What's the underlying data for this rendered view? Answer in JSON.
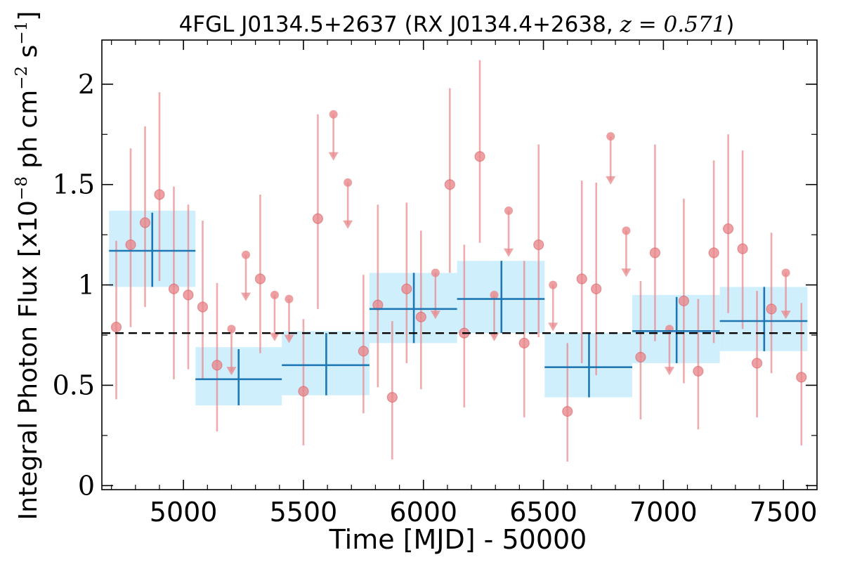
{
  "chart_data": {
    "type": "scatter",
    "title": {
      "prefix": "4FGL J0134.5+2637 (RX J0134.4+2638, ",
      "math": "z = 0.571",
      "suffix": ")"
    },
    "xlabel": "Time [MJD] - 50000",
    "ylabel": {
      "main": "Integral Photon Flux [x10",
      "exp1": "−8",
      "mid": " ph cm",
      "exp2": "−2",
      "mid2": " s",
      "exp3": "−1",
      "end": "]"
    },
    "xlim": [
      4660,
      7640
    ],
    "ylim": [
      -0.02,
      2.22
    ],
    "x_ticks": [
      5000,
      5500,
      6000,
      6500,
      7000,
      7500
    ],
    "x_tick_labels": [
      "5000",
      "5500",
      "6000",
      "6500",
      "7000",
      "7500"
    ],
    "y_ticks": [
      0,
      0.5,
      1,
      1.5,
      2
    ],
    "y_tick_labels": [
      "0",
      "0.5",
      "1",
      "1.5",
      "2"
    ],
    "grid": false,
    "average_flux": 0.76,
    "colors": {
      "points": "#e8878a",
      "bins_line": "#1f77b4",
      "bins_fill": "#b3e5fc",
      "average_line": "#000000"
    },
    "coarse_bins": [
      {
        "x_start": 4690,
        "x_end": 5050,
        "x_center": 4870,
        "y": 1.17,
        "y_err_low": 0.99,
        "y_err_high": 1.36,
        "band_low": 0.99,
        "band_high": 1.37
      },
      {
        "x_start": 5050,
        "x_end": 5410,
        "x_center": 5230,
        "y": 0.53,
        "y_err_low": 0.4,
        "y_err_high": 0.68,
        "band_low": 0.4,
        "band_high": 0.69
      },
      {
        "x_start": 5410,
        "x_end": 5775,
        "x_center": 5595,
        "y": 0.6,
        "y_err_low": 0.45,
        "y_err_high": 0.76,
        "band_low": 0.45,
        "band_high": 0.77
      },
      {
        "x_start": 5775,
        "x_end": 6140,
        "x_center": 5960,
        "y": 0.88,
        "y_err_low": 0.71,
        "y_err_high": 1.06,
        "band_low": 0.71,
        "band_high": 1.06
      },
      {
        "x_start": 6140,
        "x_end": 6505,
        "x_center": 6325,
        "y": 0.93,
        "y_err_low": 0.76,
        "y_err_high": 1.12,
        "band_low": 0.76,
        "band_high": 1.12
      },
      {
        "x_start": 6505,
        "x_end": 6870,
        "x_center": 6690,
        "y": 0.59,
        "y_err_low": 0.44,
        "y_err_high": 0.76,
        "band_low": 0.44,
        "band_high": 0.76
      },
      {
        "x_start": 6870,
        "x_end": 7235,
        "x_center": 7055,
        "y": 0.77,
        "y_err_low": 0.61,
        "y_err_high": 0.94,
        "band_low": 0.61,
        "band_high": 0.95
      },
      {
        "x_start": 7235,
        "x_end": 7600,
        "x_center": 7420,
        "y": 0.82,
        "y_err_low": 0.67,
        "y_err_high": 0.99,
        "band_low": 0.67,
        "band_high": 0.99
      }
    ],
    "fine_points": [
      {
        "x": 4720,
        "y": 0.79,
        "lo": 0.43,
        "hi": 1.22
      },
      {
        "x": 4780,
        "y": 1.2,
        "lo": 0.79,
        "hi": 1.68
      },
      {
        "x": 4840,
        "y": 1.31,
        "lo": 0.89,
        "hi": 1.79
      },
      {
        "x": 4900,
        "y": 1.45,
        "lo": 1.02,
        "hi": 1.96
      },
      {
        "x": 4960,
        "y": 0.98,
        "lo": 0.53,
        "hi": 1.49
      },
      {
        "x": 5020,
        "y": 0.95,
        "lo": 0.58,
        "hi": 1.4
      },
      {
        "x": 5080,
        "y": 0.89,
        "lo": 0.53,
        "hi": 1.32
      },
      {
        "x": 5140,
        "y": 0.6,
        "lo": 0.27,
        "hi": 1.01
      },
      {
        "x": 5200,
        "y": 0.78,
        "ul": true,
        "arrow_to": 0.56
      },
      {
        "x": 5260,
        "y": 1.15,
        "ul": true,
        "arrow_to": 0.93
      },
      {
        "x": 5320,
        "y": 1.03,
        "lo": 0.66,
        "hi": 1.45
      },
      {
        "x": 5380,
        "y": 0.95,
        "ul": true,
        "arrow_to": 0.73
      },
      {
        "x": 5440,
        "y": 0.93,
        "ul": true,
        "arrow_to": 0.72
      },
      {
        "x": 5500,
        "y": 0.47,
        "lo": 0.2,
        "hi": 0.83
      },
      {
        "x": 5560,
        "y": 1.33,
        "lo": 0.88,
        "hi": 1.85
      },
      {
        "x": 5625,
        "y": 1.85,
        "ul": true,
        "arrow_to": 1.63
      },
      {
        "x": 5685,
        "y": 1.51,
        "ul": true,
        "arrow_to": 1.29
      },
      {
        "x": 5750,
        "y": 0.67,
        "lo": 0.36,
        "hi": 1.05
      },
      {
        "x": 5810,
        "y": 0.9,
        "lo": 0.49,
        "hi": 1.4
      },
      {
        "x": 5870,
        "y": 0.44,
        "lo": 0.13,
        "hi": 0.82
      },
      {
        "x": 5930,
        "y": 0.98,
        "lo": 0.61,
        "hi": 1.41
      },
      {
        "x": 5990,
        "y": 0.84,
        "lo": 0.48,
        "hi": 1.27
      },
      {
        "x": 6050,
        "y": 1.06,
        "ul": true,
        "arrow_to": 0.84
      },
      {
        "x": 6110,
        "y": 1.5,
        "lo": 1.06,
        "hi": 1.98
      },
      {
        "x": 6170,
        "y": 0.76,
        "lo": 0.39,
        "hi": 1.2
      },
      {
        "x": 6235,
        "y": 1.64,
        "lo": 1.21,
        "hi": 2.12
      },
      {
        "x": 6295,
        "y": 0.95,
        "ul": true,
        "arrow_to": 0.73
      },
      {
        "x": 6355,
        "y": 1.37,
        "ul": true,
        "arrow_to": 1.15
      },
      {
        "x": 6420,
        "y": 0.71,
        "lo": 0.34,
        "hi": 1.12
      },
      {
        "x": 6480,
        "y": 1.2,
        "lo": 0.74,
        "hi": 1.7
      },
      {
        "x": 6540,
        "y": 1.0,
        "ul": true,
        "arrow_to": 0.78
      },
      {
        "x": 6600,
        "y": 0.37,
        "lo": 0.12,
        "hi": 0.71
      },
      {
        "x": 6660,
        "y": 1.03,
        "lo": 0.61,
        "hi": 1.52
      },
      {
        "x": 6720,
        "y": 0.98,
        "lo": 0.55,
        "hi": 1.51
      },
      {
        "x": 6780,
        "y": 1.74,
        "ul": true,
        "arrow_to": 1.51
      },
      {
        "x": 6845,
        "y": 1.27,
        "ul": true,
        "arrow_to": 1.05
      },
      {
        "x": 6905,
        "y": 0.64,
        "lo": 0.33,
        "hi": 1.02
      },
      {
        "x": 6965,
        "y": 1.16,
        "lo": 0.72,
        "hi": 1.7
      },
      {
        "x": 7025,
        "y": 0.78,
        "ul": true,
        "arrow_to": 0.56
      },
      {
        "x": 7085,
        "y": 0.92,
        "lo": 0.51,
        "hi": 1.43
      },
      {
        "x": 7145,
        "y": 0.57,
        "lo": 0.28,
        "hi": 0.93
      },
      {
        "x": 7210,
        "y": 1.16,
        "lo": 0.71,
        "hi": 1.62
      },
      {
        "x": 7270,
        "y": 1.28,
        "lo": 0.86,
        "hi": 1.75
      },
      {
        "x": 7330,
        "y": 1.18,
        "lo": 0.78,
        "hi": 1.67
      },
      {
        "x": 7390,
        "y": 0.61,
        "lo": 0.34,
        "hi": 0.97
      },
      {
        "x": 7450,
        "y": 0.88,
        "lo": 0.56,
        "hi": 1.26
      },
      {
        "x": 7510,
        "y": 1.06,
        "ul": true,
        "arrow_to": 0.84
      },
      {
        "x": 7575,
        "y": 0.54,
        "lo": 0.2,
        "hi": 0.91
      }
    ]
  }
}
